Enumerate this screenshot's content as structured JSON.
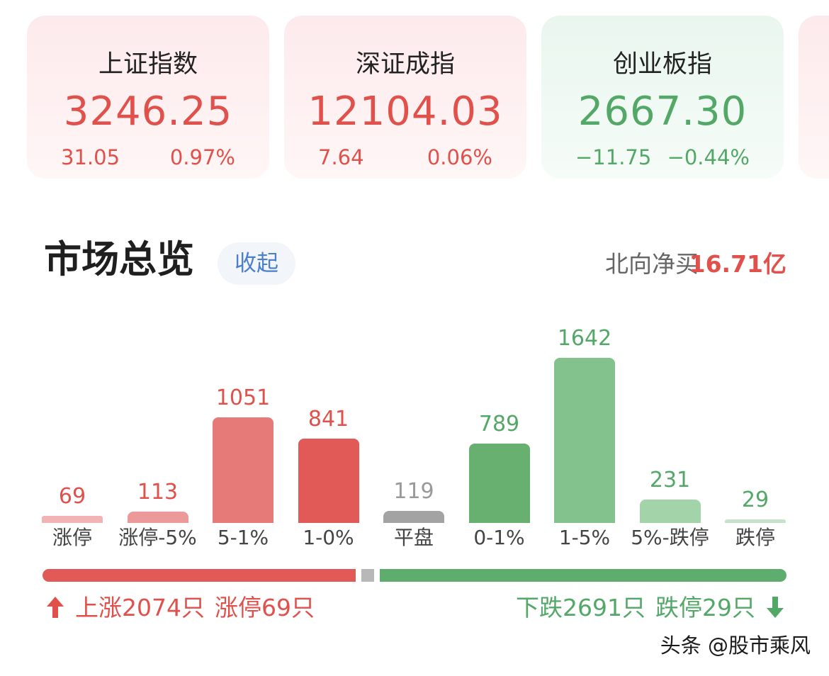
{
  "indices": [
    {
      "name": "上证指数",
      "value": "3246.25",
      "change": "31.05",
      "pct": "0.97%",
      "trend": "up"
    },
    {
      "name": "深证成指",
      "value": "12104.03",
      "change": "7.64",
      "pct": "0.06%",
      "trend": "up"
    },
    {
      "name": "创业板指",
      "value": "2667.30",
      "change": "−11.75",
      "pct": "−0.44%",
      "trend": "down"
    }
  ],
  "market": {
    "title": "市场总览",
    "collapse_label": "收起",
    "north_label": "北向净买",
    "north_value": "16.71亿"
  },
  "chart_data": {
    "type": "bar",
    "categories": [
      "涨停",
      "涨停-5%",
      "5-1%",
      "1-0%",
      "平盘",
      "0-1%",
      "1-5%",
      "5%-跌停",
      "跌停"
    ],
    "values": [
      69,
      113,
      1051,
      841,
      119,
      789,
      1642,
      231,
      29
    ],
    "value_labels": [
      "69",
      "113",
      "1051",
      "841",
      "119",
      "789",
      "1642",
      "231",
      "29"
    ],
    "colors": [
      "#f1b3b3",
      "#eb9a99",
      "#e57a78",
      "#e15a57",
      "#a3a3a3",
      "#67b06f",
      "#84c28d",
      "#a3d4a9",
      "#c6e3ca"
    ],
    "label_colors": [
      "#e0514c",
      "#e0514c",
      "#e0514c",
      "#e0514c",
      "#999999",
      "#53a868",
      "#53a868",
      "#53a868",
      "#53a868"
    ]
  },
  "breadth": {
    "up_count": 2074,
    "down_count": 2691,
    "up_text": "上涨2074只",
    "limit_up_text": "涨停69只",
    "down_text": "下跌2691只",
    "limit_down_text": "跌停29只",
    "up_color": "#e0514c",
    "down_color": "#53a868"
  },
  "watermark": "头条 @股市乘风"
}
